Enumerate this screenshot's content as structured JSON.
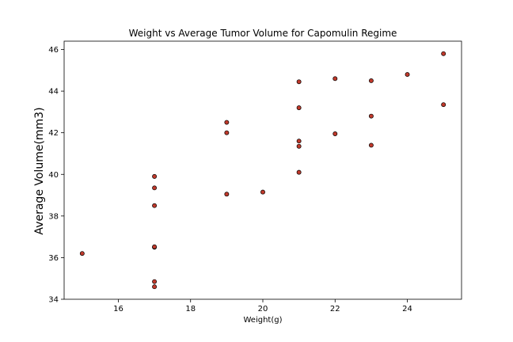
{
  "chart_data": {
    "type": "scatter",
    "title": "Weight vs Average Tumor Volume for Capomulin Regime",
    "xlabel": "Weight(g)",
    "ylabel": "Average Volume(mm3)",
    "xlim": [
      14.5,
      25.5
    ],
    "ylim": [
      34,
      46.4
    ],
    "xticks": [
      16,
      18,
      20,
      22,
      24
    ],
    "yticks": [
      34,
      36,
      38,
      40,
      42,
      44,
      46
    ],
    "grid": false,
    "marker_color": "#c0392b",
    "marker_edge": "#000000",
    "points": [
      {
        "x": 15,
        "y": 36.2
      },
      {
        "x": 17,
        "y": 34.6
      },
      {
        "x": 17,
        "y": 34.85
      },
      {
        "x": 17,
        "y": 36.5
      },
      {
        "x": 17,
        "y": 36.52
      },
      {
        "x": 17,
        "y": 38.5
      },
      {
        "x": 17,
        "y": 39.35
      },
      {
        "x": 17,
        "y": 39.9
      },
      {
        "x": 19,
        "y": 39.05
      },
      {
        "x": 19,
        "y": 42.0
      },
      {
        "x": 19,
        "y": 42.5
      },
      {
        "x": 20,
        "y": 39.15
      },
      {
        "x": 21,
        "y": 40.1
      },
      {
        "x": 21,
        "y": 41.35
      },
      {
        "x": 21,
        "y": 41.6
      },
      {
        "x": 21,
        "y": 43.2
      },
      {
        "x": 21,
        "y": 44.45
      },
      {
        "x": 22,
        "y": 41.95
      },
      {
        "x": 22,
        "y": 44.6
      },
      {
        "x": 23,
        "y": 41.4
      },
      {
        "x": 23,
        "y": 42.8
      },
      {
        "x": 23,
        "y": 44.5
      },
      {
        "x": 24,
        "y": 44.8
      },
      {
        "x": 25,
        "y": 43.35
      },
      {
        "x": 25,
        "y": 45.8
      }
    ]
  }
}
